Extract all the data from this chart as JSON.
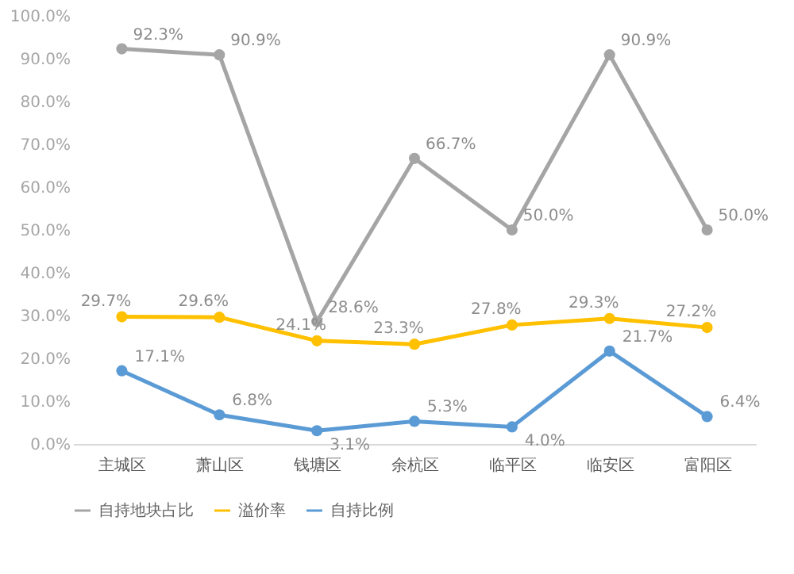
{
  "chart_data": {
    "type": "line",
    "categories": [
      "主城区",
      "萧山区",
      "钱塘区",
      "余杭区",
      "临平区",
      "临安区",
      "富阳区"
    ],
    "series": [
      {
        "name": "自持地块占比",
        "color": "#a5a5a5",
        "values": [
          92.3,
          90.9,
          28.6,
          66.7,
          50.0,
          90.9,
          50.0
        ],
        "value_labels": [
          "92.3%",
          "90.9%",
          "28.6%",
          "66.7%",
          "50.0%",
          "90.9%",
          "50.0%"
        ]
      },
      {
        "name": "溢价率",
        "color": "#ffc000",
        "values": [
          29.7,
          29.6,
          24.1,
          23.3,
          27.8,
          29.3,
          27.2
        ],
        "value_labels": [
          "29.7%",
          "29.6%",
          "24.1%",
          "23.3%",
          "27.8%",
          "29.3%",
          "27.2%"
        ]
      },
      {
        "name": "自持比例",
        "color": "#5b9bd5",
        "values": [
          17.1,
          6.8,
          3.1,
          5.3,
          4.0,
          21.7,
          6.4
        ],
        "value_labels": [
          "17.1%",
          "6.8%",
          "3.1%",
          "5.3%",
          "4.0%",
          "21.7%",
          "6.4%"
        ]
      }
    ],
    "ylim": [
      0,
      100
    ],
    "yticks": [
      {
        "value": 0,
        "label": "0.0%"
      },
      {
        "value": 10,
        "label": "10.0%"
      },
      {
        "value": 20,
        "label": "20.0%"
      },
      {
        "value": 30,
        "label": "30.0%"
      },
      {
        "value": 40,
        "label": "40.0%"
      },
      {
        "value": 50,
        "label": "50.0%"
      },
      {
        "value": 60,
        "label": "60.0%"
      },
      {
        "value": 70,
        "label": "70.0%"
      },
      {
        "value": 80,
        "label": "80.0%"
      },
      {
        "value": 90,
        "label": "90.0%"
      },
      {
        "value": 100,
        "label": "100.0%"
      }
    ],
    "marker": "circle",
    "legend": "bottom",
    "grid": false
  }
}
